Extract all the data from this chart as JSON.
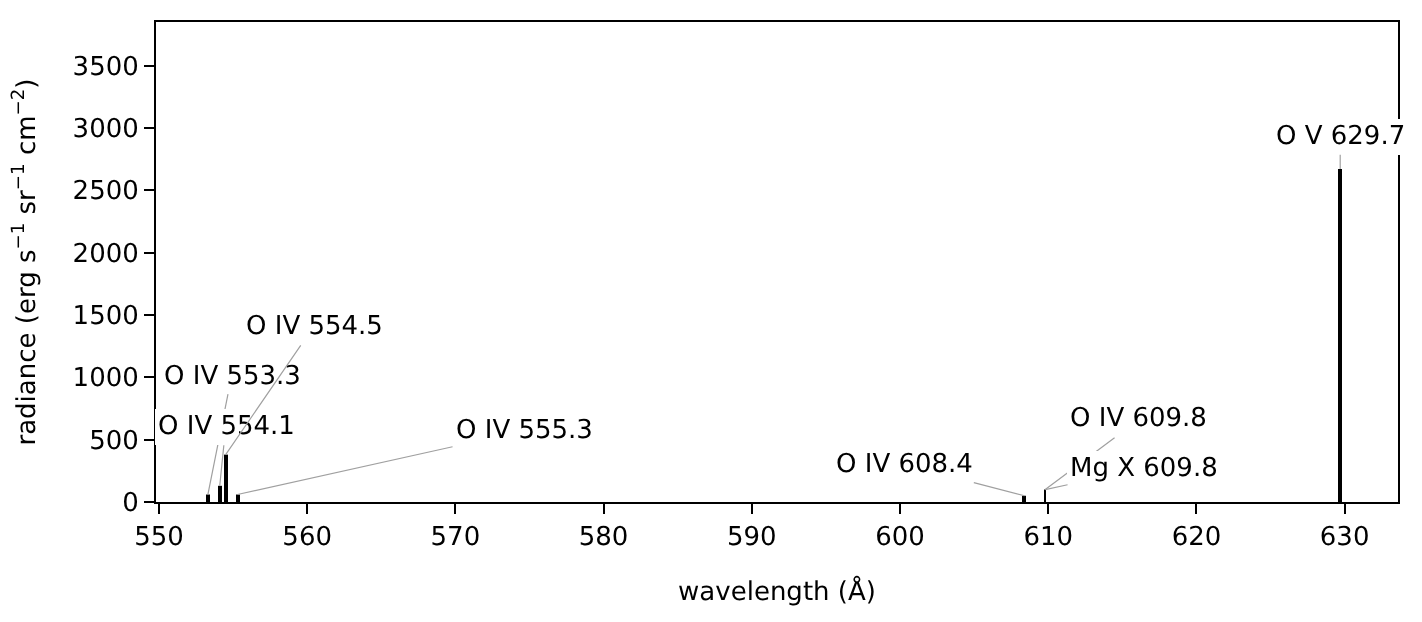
{
  "chart_data": {
    "type": "bar",
    "xlabel": "wavelength (Å)",
    "ylabel": "radiance (erg s$^{−1}$ sr$^{−1}$ cm$^{−2}$)",
    "x": [
      553.3,
      554.1,
      554.5,
      555.3,
      608.4,
      609.8,
      629.7
    ],
    "values": [
      60,
      130,
      380,
      60,
      50,
      100,
      2670
    ],
    "color": "#000000",
    "xlim": [
      549.8,
      633.6
    ],
    "xticks": [
      550,
      560,
      570,
      580,
      590,
      600,
      610,
      620,
      630
    ],
    "ylim": [
      0,
      3850
    ],
    "yticks": [
      0,
      500,
      1000,
      1500,
      2000,
      2500,
      3000,
      3500
    ],
    "annotations": [
      {
        "text": "O IV 553.3",
        "x": 553.3,
        "y": 60
      },
      {
        "text": "O IV 554.1",
        "x": 554.1,
        "y": 130
      },
      {
        "text": "O IV 554.5",
        "x": 554.5,
        "y": 380
      },
      {
        "text": "O IV 555.3",
        "x": 555.3,
        "y": 60
      },
      {
        "text": "O IV 608.4",
        "x": 608.4,
        "y": 50
      },
      {
        "text": "O IV 609.8",
        "x": 609.8,
        "y": 100
      },
      {
        "text": "Mg X 609.8",
        "x": 609.8,
        "y": 100
      },
      {
        "text": "O V 629.7",
        "x": 629.7,
        "y": 2670
      }
    ]
  }
}
